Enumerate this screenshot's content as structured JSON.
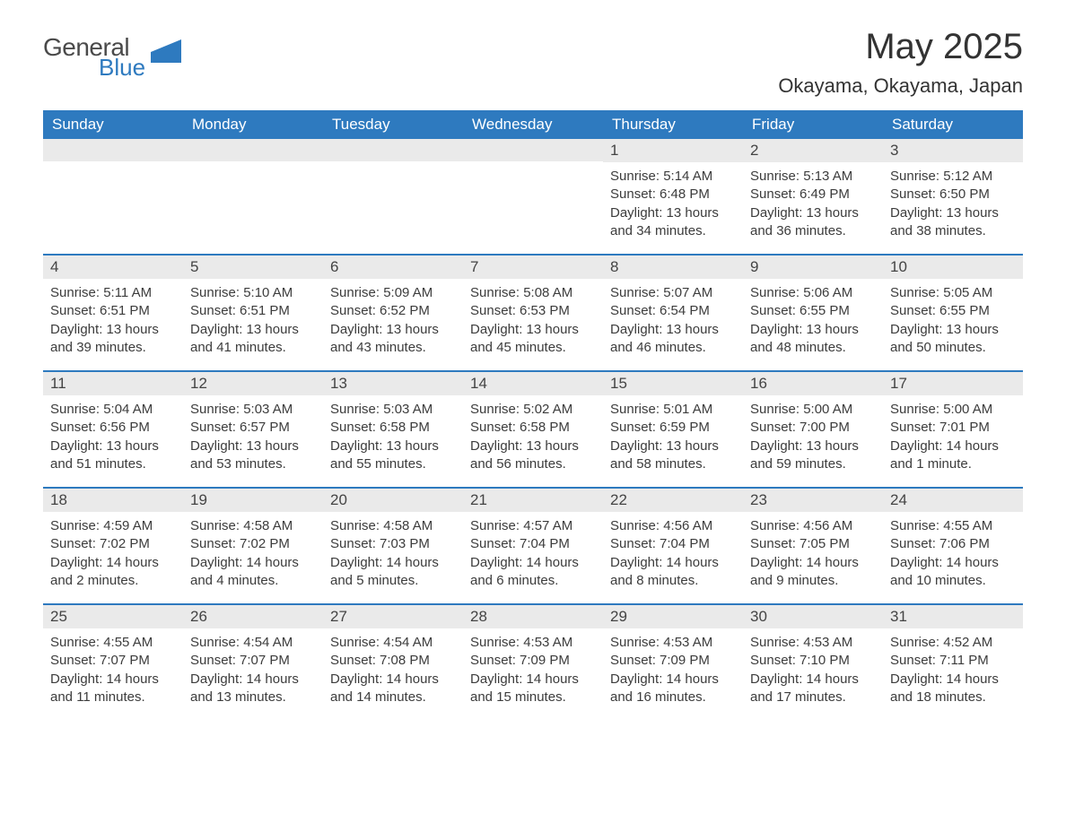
{
  "brand": {
    "word1": "General",
    "word2": "Blue",
    "word1_color": "#4a4a4a",
    "word2_color": "#2e7abf",
    "shape_color": "#2e7abf"
  },
  "title": "May 2025",
  "location": "Okayama, Okayama, Japan",
  "colors": {
    "header_bg": "#2e7abf",
    "header_text": "#ffffff",
    "daynum_bg": "#eaeaea",
    "daynum_text": "#444444",
    "body_text": "#3c3c3c",
    "week_divider": "#2e7abf",
    "page_bg": "#ffffff"
  },
  "fonts": {
    "title_size_pt": 30,
    "location_size_pt": 16,
    "header_size_pt": 13,
    "daynum_size_pt": 13,
    "body_size_pt": 11
  },
  "weekdays": [
    "Sunday",
    "Monday",
    "Tuesday",
    "Wednesday",
    "Thursday",
    "Friday",
    "Saturday"
  ],
  "weeks": [
    [
      {
        "n": "",
        "sunrise": "",
        "sunset": "",
        "daylight": ""
      },
      {
        "n": "",
        "sunrise": "",
        "sunset": "",
        "daylight": ""
      },
      {
        "n": "",
        "sunrise": "",
        "sunset": "",
        "daylight": ""
      },
      {
        "n": "",
        "sunrise": "",
        "sunset": "",
        "daylight": ""
      },
      {
        "n": "1",
        "sunrise": "Sunrise: 5:14 AM",
        "sunset": "Sunset: 6:48 PM",
        "daylight": "Daylight: 13 hours and 34 minutes."
      },
      {
        "n": "2",
        "sunrise": "Sunrise: 5:13 AM",
        "sunset": "Sunset: 6:49 PM",
        "daylight": "Daylight: 13 hours and 36 minutes."
      },
      {
        "n": "3",
        "sunrise": "Sunrise: 5:12 AM",
        "sunset": "Sunset: 6:50 PM",
        "daylight": "Daylight: 13 hours and 38 minutes."
      }
    ],
    [
      {
        "n": "4",
        "sunrise": "Sunrise: 5:11 AM",
        "sunset": "Sunset: 6:51 PM",
        "daylight": "Daylight: 13 hours and 39 minutes."
      },
      {
        "n": "5",
        "sunrise": "Sunrise: 5:10 AM",
        "sunset": "Sunset: 6:51 PM",
        "daylight": "Daylight: 13 hours and 41 minutes."
      },
      {
        "n": "6",
        "sunrise": "Sunrise: 5:09 AM",
        "sunset": "Sunset: 6:52 PM",
        "daylight": "Daylight: 13 hours and 43 minutes."
      },
      {
        "n": "7",
        "sunrise": "Sunrise: 5:08 AM",
        "sunset": "Sunset: 6:53 PM",
        "daylight": "Daylight: 13 hours and 45 minutes."
      },
      {
        "n": "8",
        "sunrise": "Sunrise: 5:07 AM",
        "sunset": "Sunset: 6:54 PM",
        "daylight": "Daylight: 13 hours and 46 minutes."
      },
      {
        "n": "9",
        "sunrise": "Sunrise: 5:06 AM",
        "sunset": "Sunset: 6:55 PM",
        "daylight": "Daylight: 13 hours and 48 minutes."
      },
      {
        "n": "10",
        "sunrise": "Sunrise: 5:05 AM",
        "sunset": "Sunset: 6:55 PM",
        "daylight": "Daylight: 13 hours and 50 minutes."
      }
    ],
    [
      {
        "n": "11",
        "sunrise": "Sunrise: 5:04 AM",
        "sunset": "Sunset: 6:56 PM",
        "daylight": "Daylight: 13 hours and 51 minutes."
      },
      {
        "n": "12",
        "sunrise": "Sunrise: 5:03 AM",
        "sunset": "Sunset: 6:57 PM",
        "daylight": "Daylight: 13 hours and 53 minutes."
      },
      {
        "n": "13",
        "sunrise": "Sunrise: 5:03 AM",
        "sunset": "Sunset: 6:58 PM",
        "daylight": "Daylight: 13 hours and 55 minutes."
      },
      {
        "n": "14",
        "sunrise": "Sunrise: 5:02 AM",
        "sunset": "Sunset: 6:58 PM",
        "daylight": "Daylight: 13 hours and 56 minutes."
      },
      {
        "n": "15",
        "sunrise": "Sunrise: 5:01 AM",
        "sunset": "Sunset: 6:59 PM",
        "daylight": "Daylight: 13 hours and 58 minutes."
      },
      {
        "n": "16",
        "sunrise": "Sunrise: 5:00 AM",
        "sunset": "Sunset: 7:00 PM",
        "daylight": "Daylight: 13 hours and 59 minutes."
      },
      {
        "n": "17",
        "sunrise": "Sunrise: 5:00 AM",
        "sunset": "Sunset: 7:01 PM",
        "daylight": "Daylight: 14 hours and 1 minute."
      }
    ],
    [
      {
        "n": "18",
        "sunrise": "Sunrise: 4:59 AM",
        "sunset": "Sunset: 7:02 PM",
        "daylight": "Daylight: 14 hours and 2 minutes."
      },
      {
        "n": "19",
        "sunrise": "Sunrise: 4:58 AM",
        "sunset": "Sunset: 7:02 PM",
        "daylight": "Daylight: 14 hours and 4 minutes."
      },
      {
        "n": "20",
        "sunrise": "Sunrise: 4:58 AM",
        "sunset": "Sunset: 7:03 PM",
        "daylight": "Daylight: 14 hours and 5 minutes."
      },
      {
        "n": "21",
        "sunrise": "Sunrise: 4:57 AM",
        "sunset": "Sunset: 7:04 PM",
        "daylight": "Daylight: 14 hours and 6 minutes."
      },
      {
        "n": "22",
        "sunrise": "Sunrise: 4:56 AM",
        "sunset": "Sunset: 7:04 PM",
        "daylight": "Daylight: 14 hours and 8 minutes."
      },
      {
        "n": "23",
        "sunrise": "Sunrise: 4:56 AM",
        "sunset": "Sunset: 7:05 PM",
        "daylight": "Daylight: 14 hours and 9 minutes."
      },
      {
        "n": "24",
        "sunrise": "Sunrise: 4:55 AM",
        "sunset": "Sunset: 7:06 PM",
        "daylight": "Daylight: 14 hours and 10 minutes."
      }
    ],
    [
      {
        "n": "25",
        "sunrise": "Sunrise: 4:55 AM",
        "sunset": "Sunset: 7:07 PM",
        "daylight": "Daylight: 14 hours and 11 minutes."
      },
      {
        "n": "26",
        "sunrise": "Sunrise: 4:54 AM",
        "sunset": "Sunset: 7:07 PM",
        "daylight": "Daylight: 14 hours and 13 minutes."
      },
      {
        "n": "27",
        "sunrise": "Sunrise: 4:54 AM",
        "sunset": "Sunset: 7:08 PM",
        "daylight": "Daylight: 14 hours and 14 minutes."
      },
      {
        "n": "28",
        "sunrise": "Sunrise: 4:53 AM",
        "sunset": "Sunset: 7:09 PM",
        "daylight": "Daylight: 14 hours and 15 minutes."
      },
      {
        "n": "29",
        "sunrise": "Sunrise: 4:53 AM",
        "sunset": "Sunset: 7:09 PM",
        "daylight": "Daylight: 14 hours and 16 minutes."
      },
      {
        "n": "30",
        "sunrise": "Sunrise: 4:53 AM",
        "sunset": "Sunset: 7:10 PM",
        "daylight": "Daylight: 14 hours and 17 minutes."
      },
      {
        "n": "31",
        "sunrise": "Sunrise: 4:52 AM",
        "sunset": "Sunset: 7:11 PM",
        "daylight": "Daylight: 14 hours and 18 minutes."
      }
    ]
  ]
}
